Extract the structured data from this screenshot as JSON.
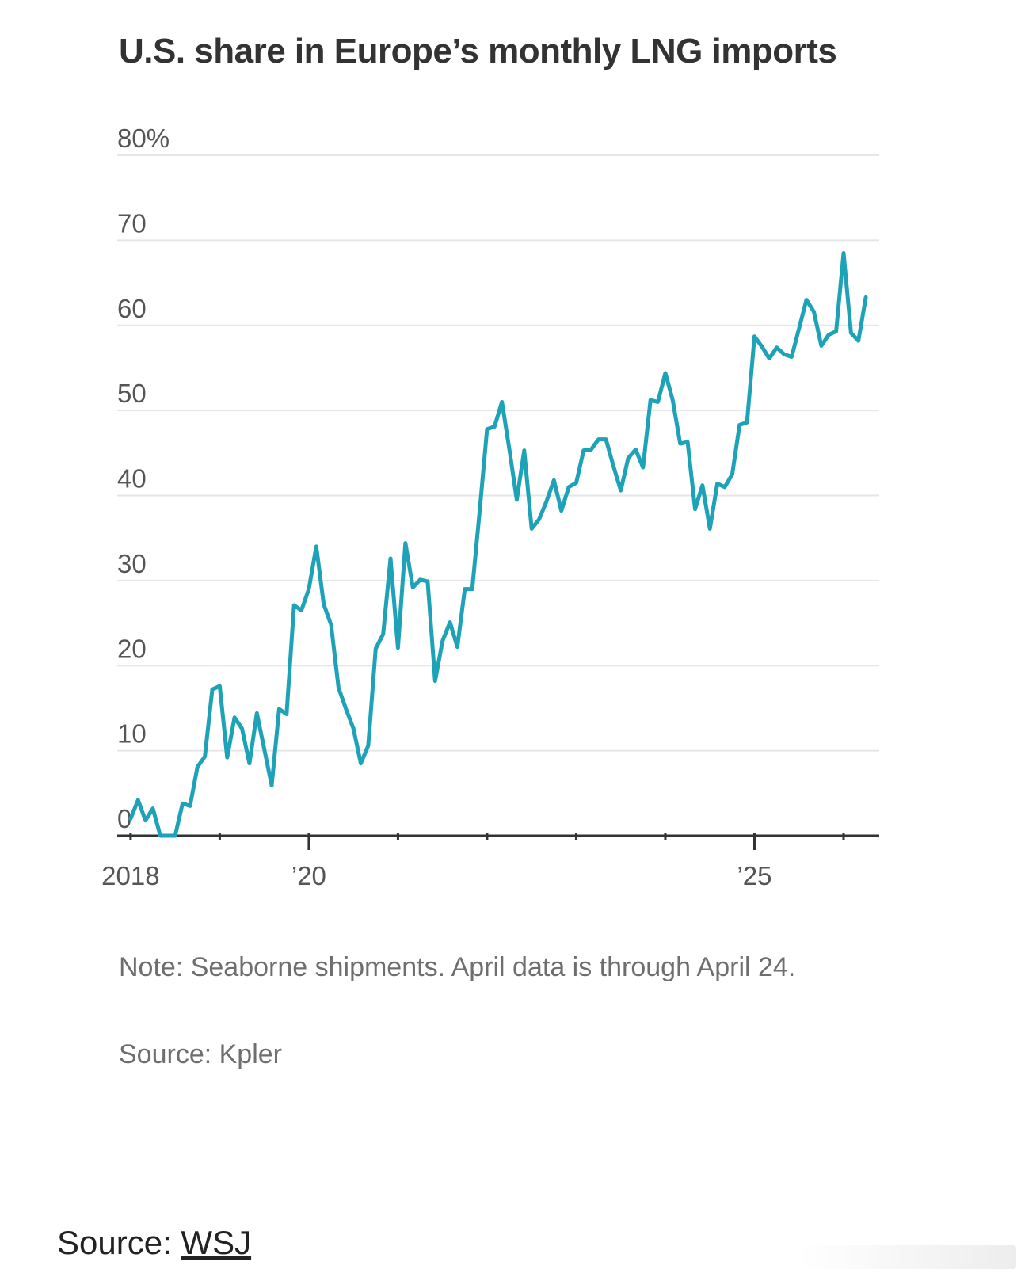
{
  "chart_data": {
    "type": "line",
    "title": "U.S. share in Europe’s monthly LNG imports",
    "xlabel": "",
    "ylabel": "",
    "ylim": [
      0,
      80
    ],
    "y_ticks": [
      {
        "value": 80,
        "label": "80%"
      },
      {
        "value": 70,
        "label": "70"
      },
      {
        "value": 60,
        "label": "60"
      },
      {
        "value": 50,
        "label": "50"
      },
      {
        "value": 40,
        "label": "40"
      },
      {
        "value": 30,
        "label": "30"
      },
      {
        "value": 20,
        "label": "20"
      },
      {
        "value": 10,
        "label": "10"
      },
      {
        "value": 0,
        "label": "0"
      }
    ],
    "x_range": [
      2017.85,
      2026.4
    ],
    "x_ticks": [
      {
        "value": 2018,
        "label": "2018"
      },
      {
        "value": 2020,
        "label": "’20"
      },
      {
        "value": 2025,
        "label": "’25"
      }
    ],
    "x_minor_ticks": [
      2018,
      2019,
      2020,
      2021,
      2022,
      2023,
      2024,
      2025,
      2026
    ],
    "grid": true,
    "series": [
      {
        "name": "U.S. share",
        "color": "#1ea2b8",
        "start": 2018.0,
        "step": 0.0833333,
        "values": [
          2,
          4.2,
          1.8,
          3.2,
          0,
          0,
          0,
          3.8,
          3.5,
          8.1,
          9.3,
          17.2,
          17.6,
          9.2,
          13.9,
          12.6,
          8.5,
          14.4,
          10.2,
          5.9,
          14.9,
          14.3,
          27.1,
          26.5,
          29,
          34,
          27.2,
          24.8,
          17.4,
          14.9,
          12.6,
          8.5,
          10.6,
          22,
          23.7,
          32.6,
          22.1,
          34.4,
          29.2,
          30.1,
          29.9,
          18.2,
          22.9,
          25.1,
          22.2,
          29,
          29,
          38.2,
          47.8,
          48.1,
          51,
          45.4,
          39.5,
          45.3,
          36.1,
          37.2,
          39.3,
          41.8,
          38.2,
          41,
          41.5,
          45.3,
          45.4,
          46.6,
          46.6,
          43.5,
          40.6,
          44.4,
          45.4,
          43.3,
          51.2,
          51,
          54.4,
          51.2,
          46.1,
          46.3,
          38.4,
          41.2,
          36.1,
          41.4,
          41,
          42.5,
          48.3,
          48.6,
          58.7,
          57.5,
          56.1,
          57.4,
          56.6,
          56.3,
          59.6,
          63,
          61.6,
          57.6,
          58.9,
          59.3,
          68.5,
          59.1,
          58.2,
          63.3
        ]
      }
    ],
    "note": "Note: Seaborne shipments. April data is through April 24.",
    "source": "Source: Kpler"
  },
  "footer": {
    "prefix": "Source: ",
    "link_text": "WSJ"
  },
  "colors": {
    "line": "#1ea2b8",
    "grid": "#e6e6e6",
    "axis": "#333333",
    "tick_text": "#555555",
    "title": "#333333"
  }
}
